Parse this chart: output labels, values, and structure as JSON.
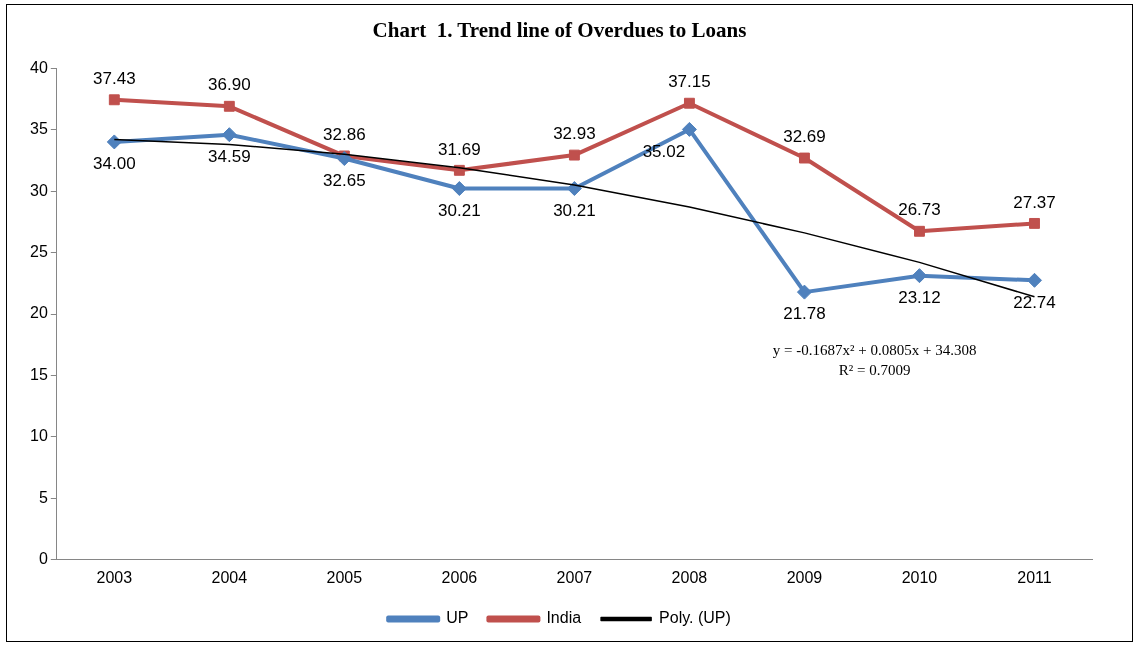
{
  "chart_data": {
    "type": "line",
    "title": "Chart  1. Trend line of Overdues to Loans",
    "categories": [
      "2003",
      "2004",
      "2005",
      "2006",
      "2007",
      "2008",
      "2009",
      "2010",
      "2011"
    ],
    "series": [
      {
        "name": "UP",
        "color": "#4f81bd",
        "marker": "diamond",
        "values": [
          34.0,
          34.59,
          32.65,
          30.21,
          30.21,
          35.02,
          21.78,
          23.12,
          22.74
        ],
        "value_labels": [
          "34.00",
          "34.59",
          "32.65",
          "30.21",
          "30.21",
          "35.02",
          "21.78",
          "23.12",
          "22.74"
        ]
      },
      {
        "name": "India",
        "color": "#c0504d",
        "marker": "square",
        "values": [
          37.43,
          36.9,
          32.86,
          31.69,
          32.93,
          37.15,
          32.69,
          26.73,
          27.37
        ],
        "value_labels": [
          "37.43",
          "36.90",
          "32.86",
          "31.69",
          "32.93",
          "37.15",
          "32.69",
          "26.73",
          "27.37"
        ]
      },
      {
        "name": "Poly. (UP)",
        "color": "#000000",
        "marker": "none",
        "values": [
          34.2,
          33.8,
          33.0,
          31.9,
          30.5,
          28.7,
          26.6,
          24.2,
          21.4
        ]
      }
    ],
    "ylim": [
      0,
      40
    ],
    "yticks": [
      0,
      5,
      10,
      15,
      20,
      25,
      30,
      35,
      40
    ],
    "grid": false,
    "legend": "bottom",
    "line_style": "solid",
    "annotations": [
      "y = -0.1687x² + 0.0805x + 34.308",
      "R² = 0.7009"
    ]
  }
}
